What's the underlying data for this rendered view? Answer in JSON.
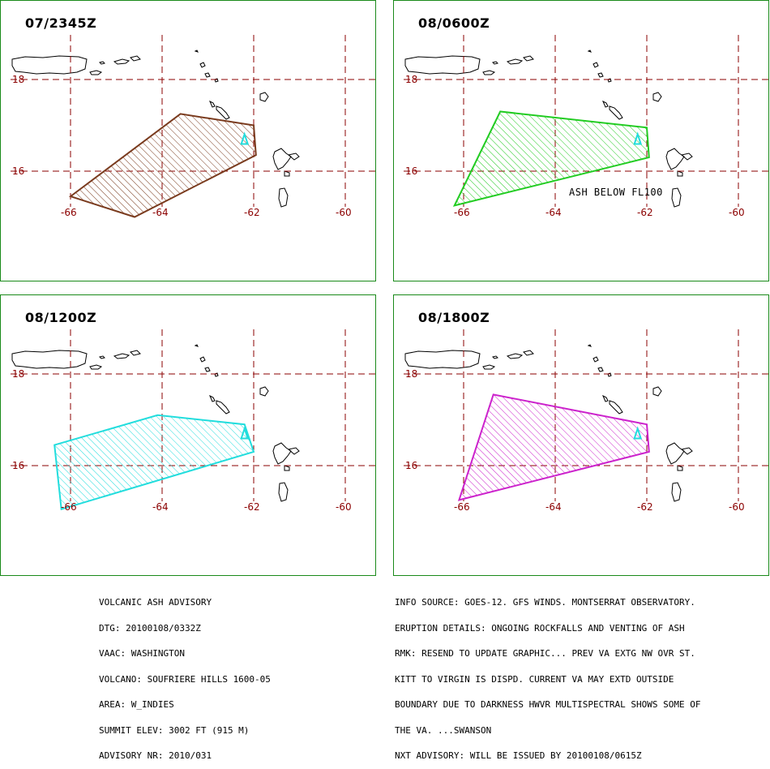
{
  "panels": [
    {
      "title": "07/2345Z",
      "color": "#7a3b1e",
      "polygon": [
        [
          -66.0,
          15.45
        ],
        [
          -64.6,
          15.0
        ],
        [
          -61.95,
          16.35
        ],
        [
          -62.0,
          17.0
        ],
        [
          -63.6,
          17.25
        ]
      ],
      "annotation": ""
    },
    {
      "title": "08/0600Z",
      "color": "#22cc22",
      "polygon": [
        [
          -66.2,
          15.25
        ],
        [
          -61.95,
          16.3
        ],
        [
          -62.0,
          16.95
        ],
        [
          -65.2,
          17.3
        ]
      ],
      "annotation": "ASH BELOW FL100"
    },
    {
      "title": "08/1200Z",
      "color": "#22dddd",
      "polygon": [
        [
          -66.35,
          16.45
        ],
        [
          -66.2,
          15.05
        ],
        [
          -62.0,
          16.3
        ],
        [
          -62.2,
          16.9
        ],
        [
          -64.1,
          17.1
        ]
      ],
      "annotation": ""
    },
    {
      "title": "08/1800Z",
      "color": "#cc22cc",
      "polygon": [
        [
          -66.1,
          15.25
        ],
        [
          -61.95,
          16.3
        ],
        [
          -62.0,
          16.9
        ],
        [
          -65.35,
          17.55
        ]
      ],
      "annotation": ""
    }
  ],
  "grid": {
    "lat_labels": [
      "18",
      "16"
    ],
    "lon_labels": [
      "-66",
      "-64",
      "-62",
      "-60"
    ],
    "line_color": "#8b0000"
  },
  "volcano_marker_color": "#22dddd",
  "advisory_left": [
    "VOLCANIC ASH ADVISORY",
    "DTG: 20100108/0332Z",
    "VAAC: WASHINGTON",
    "VOLCANO: SOUFRIERE HILLS 1600-05",
    "AREA: W_INDIES",
    "SUMMIT ELEV: 3002 FT (915 M)",
    "ADVISORY NR: 2010/031"
  ],
  "advisory_right": [
    "INFO SOURCE: GOES-12. GFS WINDS. MONTSERRAT OBSERVATORY.",
    "ERUPTION DETAILS: ONGOING ROCKFALLS AND VENTING OF ASH",
    "RMK: RESEND TO UPDATE GRAPHIC... PREV VA EXTG NW OVR ST.",
    "KITT TO VIRGIN IS DISPD. CURRENT VA MAY EXTD OUTSIDE",
    "BOUNDARY DUE TO DARKNESS HWVR MULTISPECTRAL SHOWS SOME OF",
    "THE VA. ...SWANSON",
    "NXT ADVISORY: WILL BE ISSUED BY 20100108/0615Z"
  ]
}
